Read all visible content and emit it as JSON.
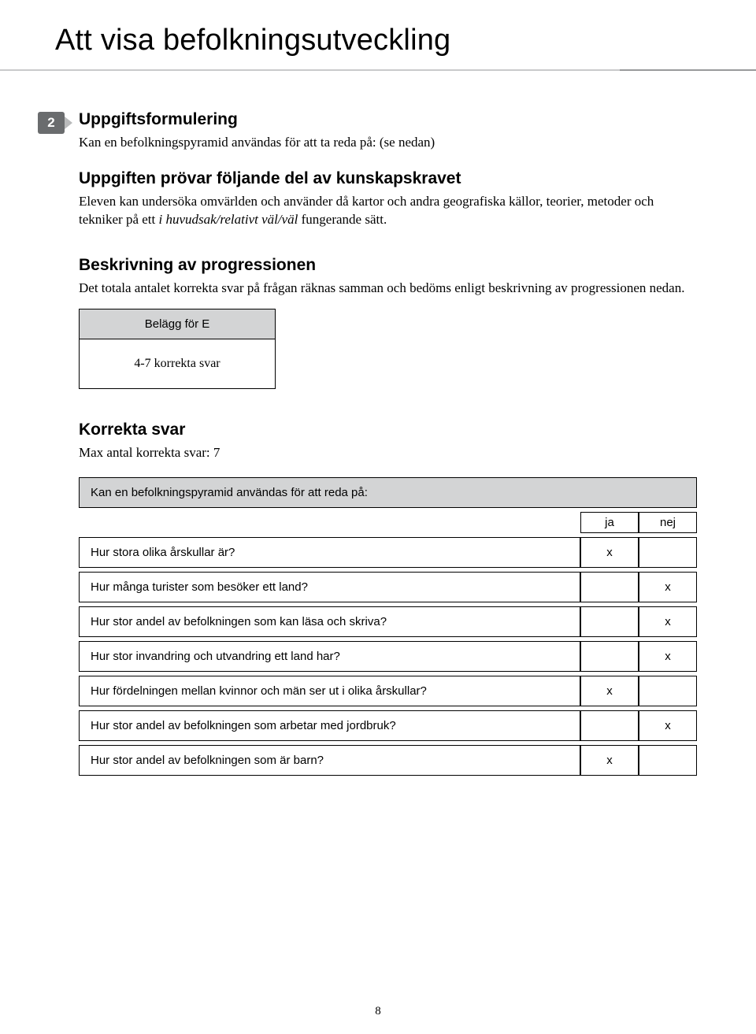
{
  "page": {
    "title": "Att visa befolkningsutveckling",
    "number": "8"
  },
  "badge": {
    "number": "2"
  },
  "section1": {
    "heading": "Uppgiftsformulering",
    "text": "Kan en befolkningspyramid användas för att ta reda på: (se nedan)"
  },
  "section2": {
    "heading": "Uppgiften prövar följande del av kunskapskravet",
    "text_pre": "Eleven kan undersöka omvärlden och använder då kartor och andra geografiska källor, teorier, metoder och tekniker på ett ",
    "text_italic": "i huvudsak/relativt väl/väl",
    "text_post": " fungerande sätt."
  },
  "section3": {
    "heading": "Beskrivning av progressionen",
    "text": "Det totala antalet korrekta svar på frågan räknas samman och bedöms enligt beskrivning av progressionen nedan.",
    "box_head": "Belägg för E",
    "box_body": "4-7 korrekta svar"
  },
  "section4": {
    "heading": "Korrekta svar",
    "subtext": "Max antal korrekta svar: 7"
  },
  "table": {
    "title": "Kan en befolkningspyramid användas för att reda på:",
    "col_ja": "ja",
    "col_nej": "nej",
    "rows": [
      {
        "q": "Hur stora olika årskullar är?",
        "ja": "x",
        "nej": ""
      },
      {
        "q": "Hur många turister som besöker ett land?",
        "ja": "",
        "nej": "x"
      },
      {
        "q": "Hur stor andel av befolkningen som kan läsa och skriva?",
        "ja": "",
        "nej": "x"
      },
      {
        "q": "Hur stor invandring och utvandring ett land har?",
        "ja": "",
        "nej": "x"
      },
      {
        "q": "Hur fördelningen mellan kvinnor och män ser ut i olika årskullar?",
        "ja": "x",
        "nej": ""
      },
      {
        "q": "Hur stor andel av befolkningen som arbetar med jordbruk?",
        "ja": "",
        "nej": "x"
      },
      {
        "q": "Hur stor andel av befolkningen som är barn?",
        "ja": "x",
        "nej": ""
      }
    ]
  }
}
